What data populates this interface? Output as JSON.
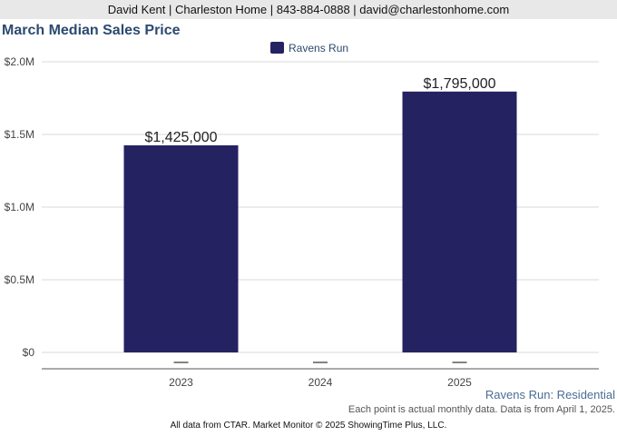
{
  "header": {
    "contact_line": "David Kent | Charleston Home | 843-884-0888 | david@charlestonhome.com"
  },
  "footer": {
    "series_label": "Ravens Run: Residential",
    "note": "Each point is actual monthly data. Data is from April 1, 2025.",
    "copyright": "All data from CTAR. Market Monitor © 2025 ShowingTime Plus, LLC."
  },
  "colors": {
    "bar": "#252262",
    "title": "#2b4a70",
    "grid": "#d9d9d9",
    "axis": "#555555"
  },
  "chart_data": {
    "type": "bar",
    "title": "March Median Sales Price",
    "categories": [
      "2023",
      "2024",
      "2025"
    ],
    "series": [
      {
        "name": "Ravens Run",
        "values": [
          1425000,
          null,
          1795000
        ]
      }
    ],
    "data_labels": [
      "$1,425,000",
      "",
      "$1,795,000"
    ],
    "ylim": [
      0,
      2000000
    ],
    "yticks": [
      0,
      500000,
      1000000,
      1500000,
      2000000
    ],
    "ytick_labels": [
      "$0",
      "$0.5M",
      "$1.0M",
      "$1.5M",
      "$2.0M"
    ],
    "grid": true,
    "legend_position": "top-center"
  }
}
